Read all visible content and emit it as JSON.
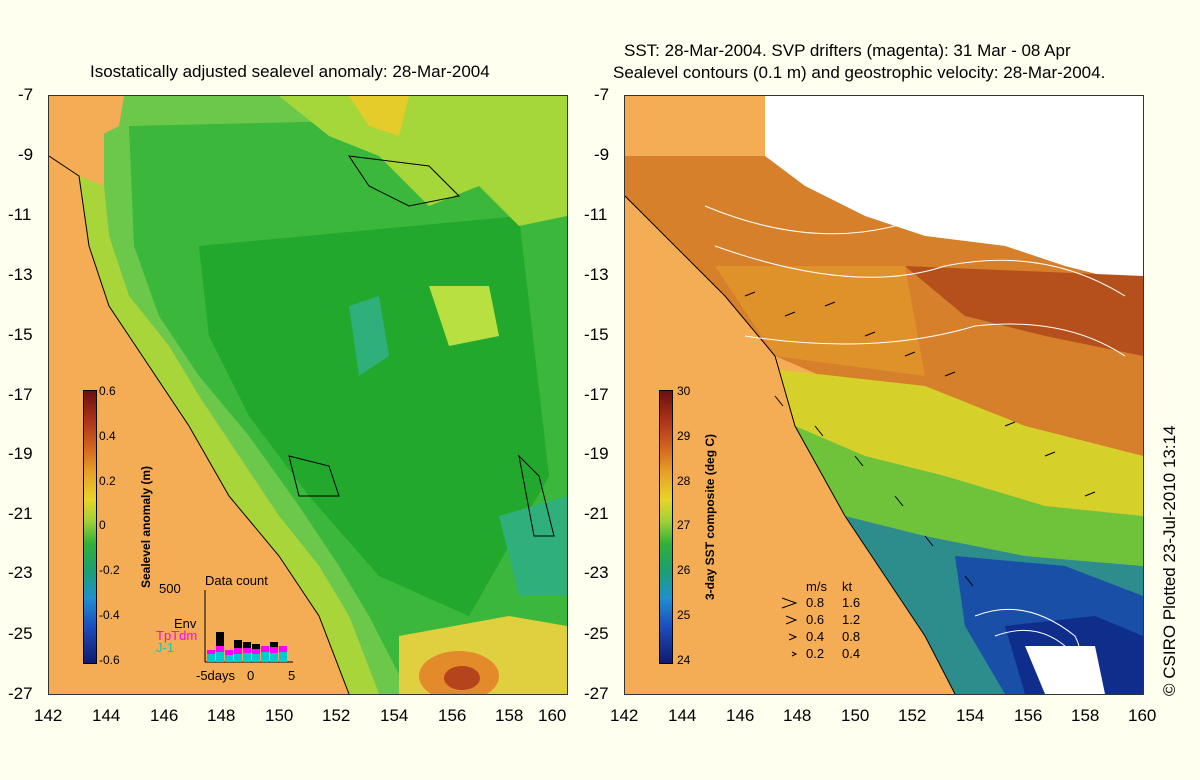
{
  "titles": {
    "left": "Isostatically adjusted sealevel anomaly: 28-Mar-2004",
    "right_line1": "SST: 28-Mar-2004. SVP drifters (magenta): 31 Mar - 08 Apr",
    "right_line2": "Sealevel contours (0.1 m) and geostrophic velocity: 28-Mar-2004."
  },
  "axes": {
    "y_ticks": [
      "-7",
      "-9",
      "-11",
      "-13",
      "-15",
      "-17",
      "-19",
      "-21",
      "-23",
      "-25",
      "-27"
    ],
    "x_ticks": [
      "142",
      "144",
      "146",
      "148",
      "150",
      "152",
      "154",
      "156",
      "158",
      "160"
    ]
  },
  "left_colorbar": {
    "label": "Sealevel anomaly (m)",
    "ticks": [
      "0.6",
      "0.4",
      "0.2",
      "0",
      "-0.2",
      "-0.4",
      "-0.6"
    ]
  },
  "right_colorbar": {
    "label": "3-day SST composite (deg C)",
    "ticks": [
      "30",
      "29",
      "28",
      "27",
      "26",
      "25",
      "24"
    ]
  },
  "data_count": {
    "title": "Data count",
    "ymax": "500",
    "series": [
      "Env",
      "TpTdm",
      "J-1"
    ],
    "xticks": [
      "-5days",
      "0",
      "5"
    ],
    "series_colors": [
      "#000000",
      "#ff00ff",
      "#00cccc"
    ]
  },
  "velocity_legend": {
    "header_ms": "m/s",
    "header_kt": "kt",
    "rows": [
      [
        "0.8",
        "1.6"
      ],
      [
        "0.6",
        "1.2"
      ],
      [
        "0.4",
        "0.8"
      ],
      [
        "0.2",
        "0.4"
      ]
    ]
  },
  "credit": "© CSIRO Plotted 23-Jul-2010 13:14"
}
